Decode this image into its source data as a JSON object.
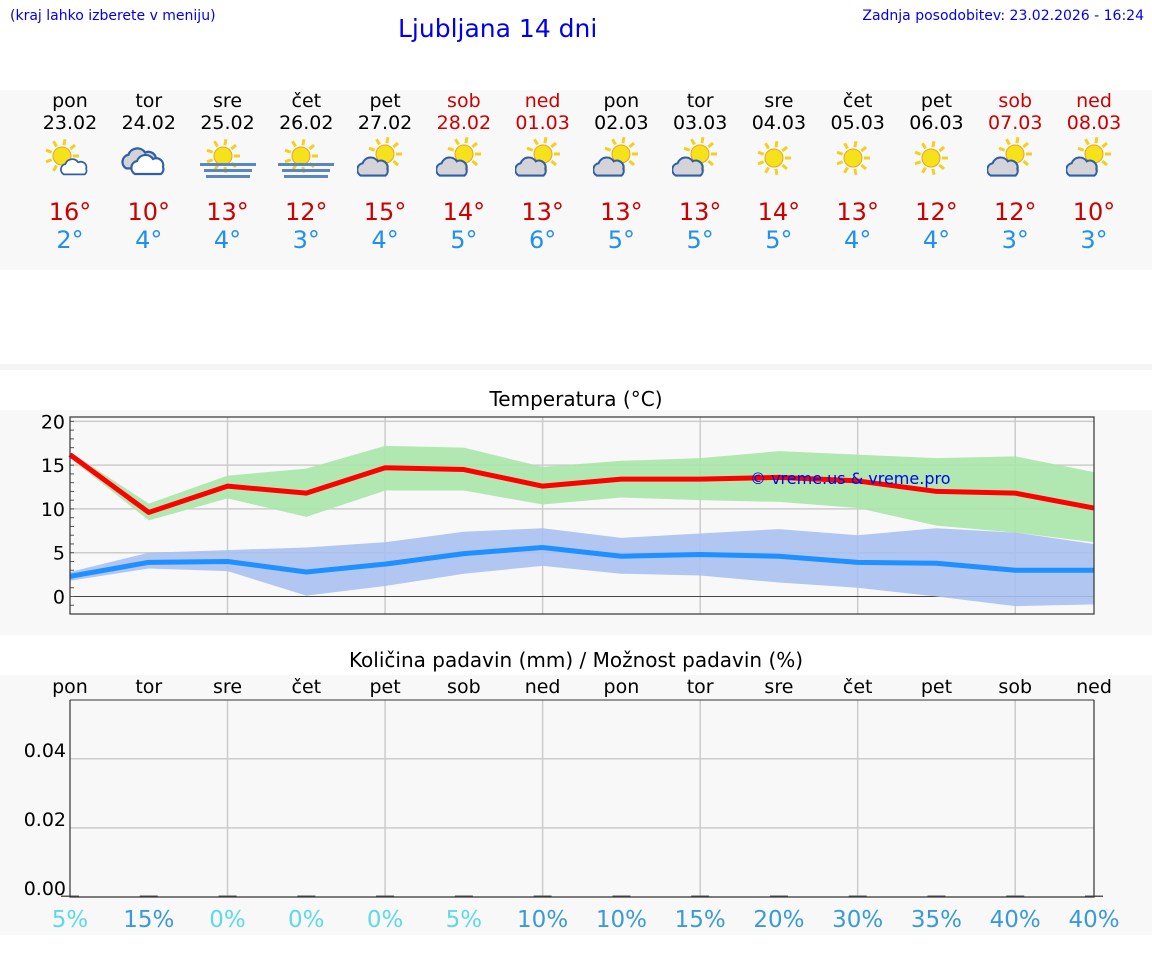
{
  "header": {
    "hint": "(kraj lahko izberete v meniju)",
    "title": "Ljubljana 14 dni",
    "updated": "Zadnja posodobitev: 23.02.2026 - 16:24"
  },
  "days": [
    {
      "name": "pon",
      "date": "23.02",
      "weekend": false,
      "icon": "sun-small-cloud",
      "max": "16°",
      "min": "2°"
    },
    {
      "name": "tor",
      "date": "24.02",
      "weekend": false,
      "icon": "cloudy",
      "max": "10°",
      "min": "4°"
    },
    {
      "name": "sre",
      "date": "25.02",
      "weekend": false,
      "icon": "sun-fog",
      "max": "13°",
      "min": "4°"
    },
    {
      "name": "čet",
      "date": "26.02",
      "weekend": false,
      "icon": "sun-fog",
      "max": "12°",
      "min": "3°"
    },
    {
      "name": "pet",
      "date": "27.02",
      "weekend": false,
      "icon": "partly-cloudy",
      "max": "15°",
      "min": "4°"
    },
    {
      "name": "sob",
      "date": "28.02",
      "weekend": true,
      "icon": "partly-cloudy",
      "max": "14°",
      "min": "5°"
    },
    {
      "name": "ned",
      "date": "01.03",
      "weekend": true,
      "icon": "partly-cloudy",
      "max": "13°",
      "min": "6°"
    },
    {
      "name": "pon",
      "date": "02.03",
      "weekend": false,
      "icon": "partly-cloudy",
      "max": "13°",
      "min": "5°"
    },
    {
      "name": "tor",
      "date": "03.03",
      "weekend": false,
      "icon": "partly-cloudy",
      "max": "13°",
      "min": "5°"
    },
    {
      "name": "sre",
      "date": "04.03",
      "weekend": false,
      "icon": "sunny",
      "max": "14°",
      "min": "5°"
    },
    {
      "name": "čet",
      "date": "05.03",
      "weekend": false,
      "icon": "sunny",
      "max": "13°",
      "min": "4°"
    },
    {
      "name": "pet",
      "date": "06.03",
      "weekend": false,
      "icon": "sunny",
      "max": "12°",
      "min": "4°"
    },
    {
      "name": "sob",
      "date": "07.03",
      "weekend": true,
      "icon": "partly-cloudy",
      "max": "12°",
      "min": "3°"
    },
    {
      "name": "ned",
      "date": "08.03",
      "weekend": true,
      "icon": "partly-cloudy",
      "max": "10°",
      "min": "3°"
    }
  ],
  "colors": {
    "max": "#ff0000",
    "max_band": "#a8e6a8",
    "min": "#1e90ff",
    "min_band": "#a8c0f0",
    "prob_low": "#5fd9e8",
    "prob_high": "#3a9ad8",
    "weekend": "#cc0000"
  },
  "chart_data": [
    {
      "type": "line",
      "title": "Temperatura (°C)",
      "watermark": "© vreme.us & vreme.pro",
      "ylim": [
        -2,
        20.5
      ],
      "yticks": [
        "0",
        "5",
        "10",
        "15",
        "20"
      ],
      "ytick_values": [
        0,
        5,
        10,
        15,
        20
      ],
      "series": [
        {
          "name": "max",
          "values": [
            16.2,
            9.6,
            12.6,
            11.8,
            14.7,
            14.5,
            12.6,
            13.4,
            13.4,
            13.6,
            13.2,
            12.0,
            11.8,
            10.1
          ],
          "band_upper": [
            16.5,
            10.6,
            13.8,
            14.6,
            17.2,
            17.0,
            14.8,
            15.5,
            15.8,
            16.6,
            16.2,
            15.8,
            16.0,
            14.2
          ],
          "band_lower": [
            15.8,
            8.7,
            11.2,
            9.1,
            12.1,
            12.1,
            10.5,
            11.3,
            11.0,
            10.8,
            10.1,
            8.1,
            7.3,
            6.2
          ]
        },
        {
          "name": "min",
          "values": [
            2.3,
            3.9,
            4.0,
            2.8,
            3.7,
            4.9,
            5.6,
            4.6,
            4.8,
            4.6,
            3.9,
            3.8,
            3.0,
            3.0
          ],
          "band_upper": [
            2.8,
            5.0,
            5.3,
            5.6,
            6.2,
            7.4,
            7.8,
            6.7,
            7.2,
            7.7,
            7.0,
            7.8,
            7.3,
            6.0
          ],
          "band_lower": [
            1.8,
            3.2,
            2.9,
            0.1,
            1.2,
            2.6,
            3.5,
            2.6,
            2.4,
            1.6,
            1.0,
            0.0,
            -1.1,
            -0.9
          ]
        }
      ]
    },
    {
      "type": "bar",
      "title": "Količina padavin (mm) / Možnost padavin (%)",
      "ylim": [
        0,
        0.057
      ],
      "yticks": [
        "0.00",
        "0.02",
        "0.04"
      ],
      "ytick_values": [
        0,
        0.02,
        0.04
      ],
      "categories": [
        "pon",
        "tor",
        "sre",
        "čet",
        "pet",
        "sob",
        "ned",
        "pon",
        "tor",
        "sre",
        "čet",
        "pet",
        "sob",
        "ned"
      ],
      "values": [
        0,
        0,
        0,
        0,
        0,
        0,
        0,
        0,
        0,
        0,
        0,
        0,
        0,
        0
      ],
      "probability": [
        "5%",
        "15%",
        "0%",
        "0%",
        "0%",
        "5%",
        "10%",
        "10%",
        "15%",
        "20%",
        "30%",
        "35%",
        "40%",
        "40%"
      ],
      "probability_values": [
        5,
        15,
        0,
        0,
        0,
        5,
        10,
        10,
        15,
        20,
        30,
        35,
        40,
        40
      ]
    }
  ]
}
